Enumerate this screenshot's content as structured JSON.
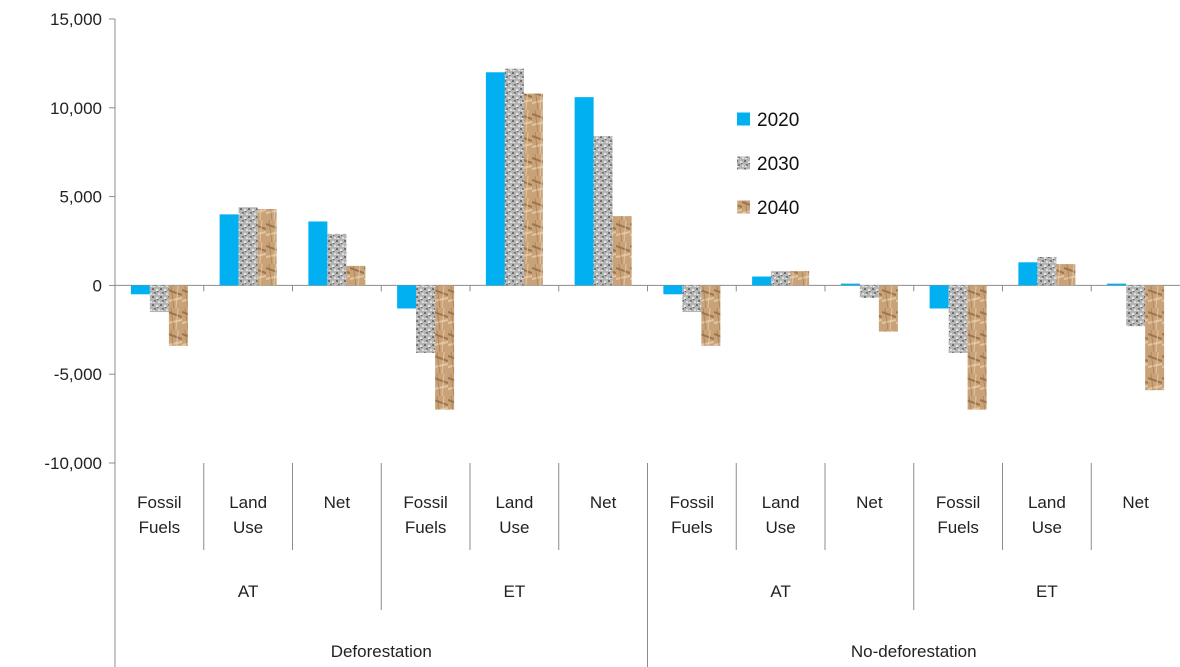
{
  "chart_data": {
    "type": "bar",
    "title": "",
    "xlabel": "",
    "ylabel": "",
    "ylim": [
      -10000,
      15000
    ],
    "yticks": [
      -10000,
      -5000,
      0,
      5000,
      10000,
      15000
    ],
    "ytick_labels": [
      "-10,000",
      "-5,000",
      "0",
      "5,000",
      "10,000",
      "15,000"
    ],
    "grid": false,
    "legend_position": "upper-center-right",
    "categories": [
      {
        "level1": "Fossil Fuels",
        "level2": "AT",
        "level3": "Deforestation"
      },
      {
        "level1": "Land Use",
        "level2": "AT",
        "level3": "Deforestation"
      },
      {
        "level1": "Net",
        "level2": "AT",
        "level3": "Deforestation"
      },
      {
        "level1": "Fossil Fuels",
        "level2": "ET",
        "level3": "Deforestation"
      },
      {
        "level1": "Land Use",
        "level2": "ET",
        "level3": "Deforestation"
      },
      {
        "level1": "Net",
        "level2": "ET",
        "level3": "Deforestation"
      },
      {
        "level1": "Fossil Fuels",
        "level2": "AT",
        "level3": "No-deforestation"
      },
      {
        "level1": "Land Use",
        "level2": "AT",
        "level3": "No-deforestation"
      },
      {
        "level1": "Net",
        "level2": "AT",
        "level3": "No-deforestation"
      },
      {
        "level1": "Fossil Fuels",
        "level2": "ET",
        "level3": "No-deforestation"
      },
      {
        "level1": "Land Use",
        "level2": "ET",
        "level3": "No-deforestation"
      },
      {
        "level1": "Net",
        "level2": "ET",
        "level3": "No-deforestation"
      }
    ],
    "level2_groups": [
      "AT",
      "ET",
      "AT",
      "ET"
    ],
    "level3_groups": [
      "Deforestation",
      "No-deforestation"
    ],
    "series": [
      {
        "name": "2020",
        "color": "#00b0f0",
        "pattern": "solid",
        "values": [
          -500,
          4000,
          3600,
          -1300,
          12000,
          10600,
          -500,
          500,
          100,
          -1300,
          1300,
          100
        ]
      },
      {
        "name": "2030",
        "color": "#a6a6a6",
        "pattern": "granite",
        "values": [
          -1500,
          4400,
          2900,
          -3800,
          12200,
          8400,
          -1500,
          800,
          -700,
          -3800,
          1600,
          -2300
        ]
      },
      {
        "name": "2040",
        "color": "#c49a6c",
        "pattern": "paper-bag",
        "values": [
          -3400,
          4300,
          1100,
          -7000,
          10800,
          3900,
          -3400,
          800,
          -2600,
          -7000,
          1200,
          -5900
        ]
      }
    ]
  }
}
